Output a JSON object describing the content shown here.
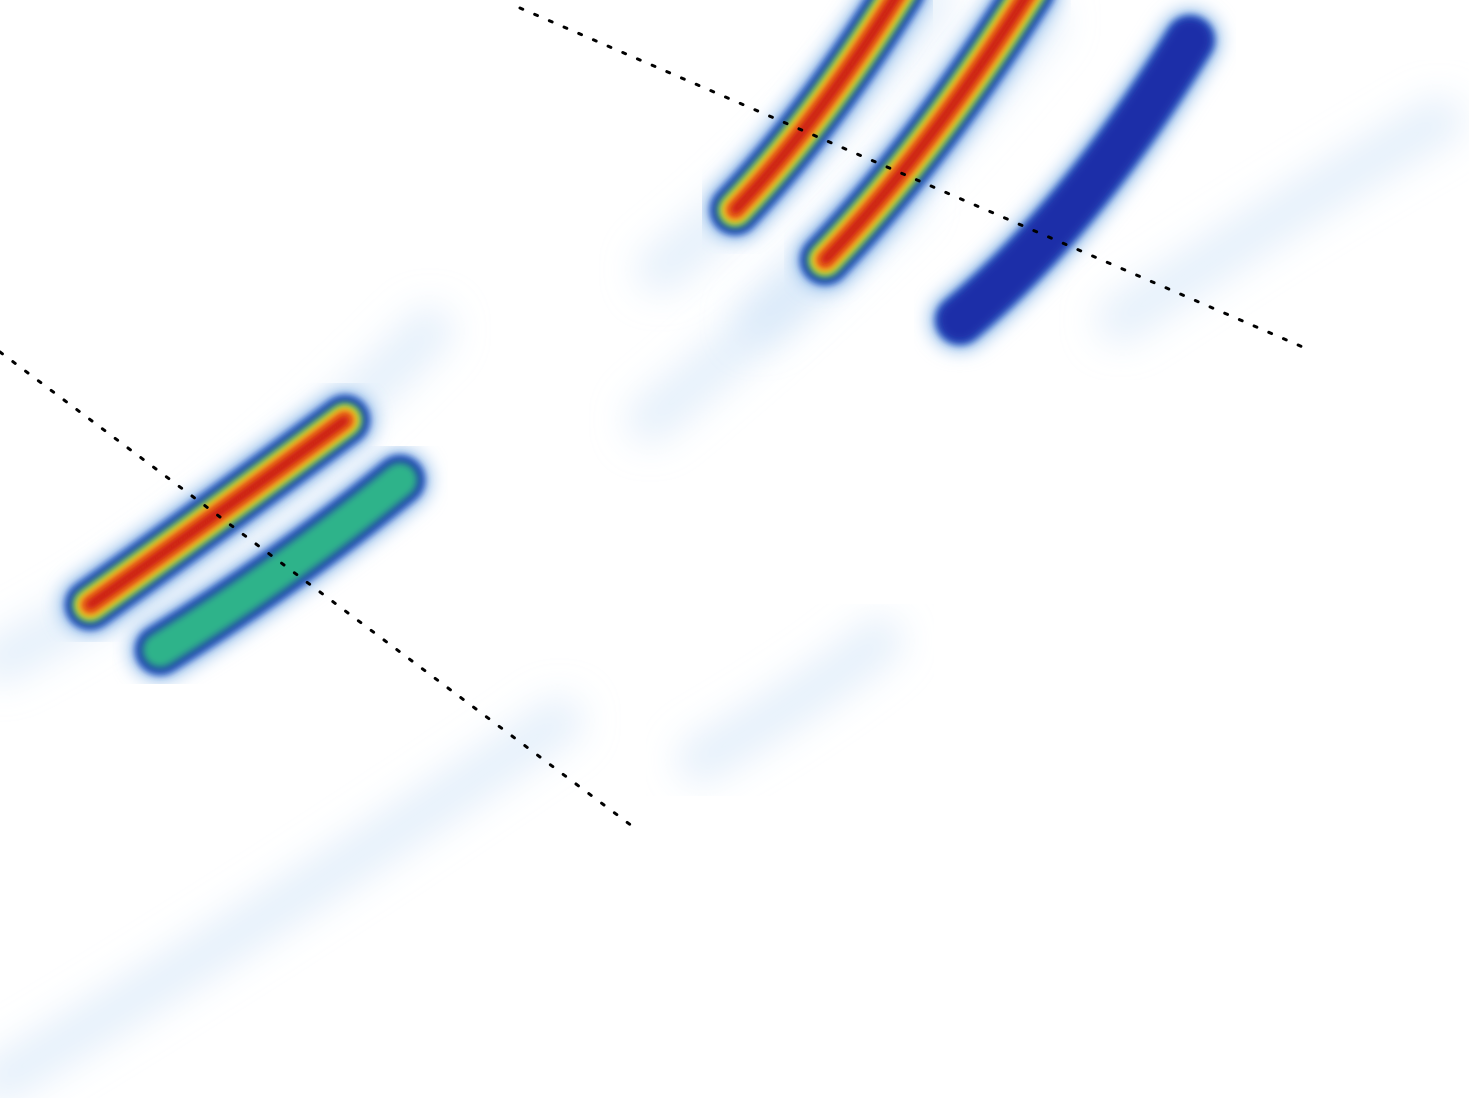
{
  "chart_data": {
    "type": "heatmap",
    "title": "",
    "xlabel": "",
    "ylabel": "",
    "grid": false,
    "legend": "none",
    "colormap": [
      "#ffffff",
      "#cfe3f7",
      "#7fb2e6",
      "#2f5fc4",
      "#1b2fa8",
      "#2fb38a",
      "#e8e81a",
      "#f5a020",
      "#e8501a",
      "#c4140e"
    ],
    "features": [
      {
        "name": "arc-lower-left",
        "peak_intensity": 1.0
      },
      {
        "name": "arc-upper-inner",
        "peak_intensity": 1.0
      },
      {
        "name": "arc-upper-outer",
        "peak_intensity": 0.95
      },
      {
        "name": "arc-upper-faint",
        "peak_intensity": 0.45
      },
      {
        "name": "arc-lower-sidelobe",
        "peak_intensity": 0.5
      }
    ],
    "guide_lines": [
      {
        "name": "dotted-line-upper",
        "style": "dotted",
        "color": "#000000"
      },
      {
        "name": "dotted-line-lower",
        "style": "dotted",
        "color": "#000000"
      }
    ]
  }
}
